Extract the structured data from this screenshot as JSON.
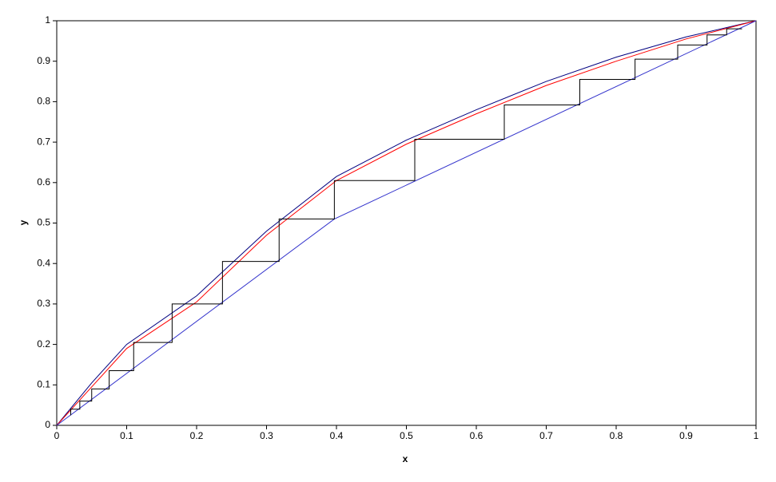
{
  "chart_data": {
    "type": "line",
    "x_label": "x",
    "y_label": "y",
    "xlim": [
      0,
      1
    ],
    "ylim": [
      0,
      1
    ],
    "xticks": [
      0,
      0.1,
      0.2,
      0.3,
      0.4,
      0.5,
      0.6,
      0.7,
      0.8,
      0.9,
      1
    ],
    "yticks": [
      0,
      0.1,
      0.2,
      0.3,
      0.4,
      0.5,
      0.6,
      0.7,
      0.8,
      0.9,
      1
    ],
    "grid": false,
    "series": [
      {
        "color": "#000080",
        "x": [
          0,
          0.05,
          0.1,
          0.2,
          0.3,
          0.4,
          0.5,
          0.6,
          0.7,
          0.8,
          0.9,
          1
        ],
        "values": [
          0,
          0.105,
          0.2,
          0.32,
          0.48,
          0.615,
          0.705,
          0.78,
          0.85,
          0.91,
          0.96,
          1
        ]
      },
      {
        "color": "#ff0000",
        "x": [
          0,
          0.05,
          0.1,
          0.2,
          0.3,
          0.4,
          0.5,
          0.6,
          0.7,
          0.8,
          0.9,
          1
        ],
        "values": [
          0,
          0.095,
          0.19,
          0.305,
          0.47,
          0.605,
          0.695,
          0.77,
          0.84,
          0.9,
          0.955,
          1
        ]
      },
      {
        "color": "#3333cc",
        "x": [
          0,
          0.397,
          1
        ],
        "values": [
          0,
          0.51,
          1
        ]
      },
      {
        "color": "#000000",
        "x": [
          0.02,
          0.02,
          0.033,
          0.033,
          0.05,
          0.05,
          0.075,
          0.075,
          0.11,
          0.11,
          0.165,
          0.165,
          0.237,
          0.237,
          0.318,
          0.318,
          0.397,
          0.397,
          0.512,
          0.512,
          0.64,
          0.64,
          0.748,
          0.748,
          0.827,
          0.827,
          0.888,
          0.888,
          0.93,
          0.93,
          0.958,
          0.958,
          0.98
        ],
        "values": [
          0.025,
          0.04,
          0.04,
          0.06,
          0.06,
          0.09,
          0.09,
          0.135,
          0.135,
          0.205,
          0.205,
          0.3,
          0.3,
          0.405,
          0.405,
          0.51,
          0.51,
          0.605,
          0.605,
          0.707,
          0.707,
          0.792,
          0.792,
          0.855,
          0.855,
          0.905,
          0.905,
          0.94,
          0.94,
          0.965,
          0.965,
          0.98,
          0.98
        ]
      }
    ]
  }
}
